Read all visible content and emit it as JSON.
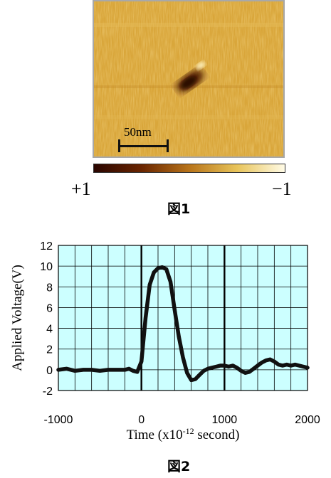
{
  "figure1": {
    "scalebar_label": "50nm",
    "colorbar": {
      "left_label": "+1",
      "right_label": "−1",
      "stops": [
        "#2a0500",
        "#6a2500",
        "#b8741a",
        "#e8c45a",
        "#fffbe6"
      ]
    },
    "caption": "図1",
    "image_palette": {
      "background": "#d9a63a",
      "dark_spot": "#4a1500",
      "bright_spot": "#fff3c0"
    }
  },
  "figure2": {
    "caption": "図2",
    "chart_data": {
      "type": "line",
      "xlabel": "Time (x10",
      "xlabel_sup": "-12",
      "xlabel_suffix": " second)",
      "ylabel": "Applied Voltage(V)",
      "xlim": [
        -1000,
        2000
      ],
      "ylim": [
        -2,
        12
      ],
      "x_ticks": [
        -1000,
        0,
        1000,
        2000
      ],
      "y_ticks": [
        -2,
        0,
        2,
        4,
        6,
        8,
        10,
        12
      ],
      "x_tick_labels": [
        "-1000",
        "0",
        "1000",
        "2000"
      ],
      "y_tick_labels": [
        "-2",
        "0",
        "2",
        "4",
        "6",
        "8",
        "10",
        "12"
      ],
      "grid": true,
      "plot_background": "#ccffff",
      "line_color": "#111111",
      "series": [
        {
          "x": [
            -1000,
            -900,
            -800,
            -700,
            -600,
            -500,
            -400,
            -300,
            -200,
            -150,
            -100,
            -50,
            0,
            50,
            100,
            150,
            200,
            250,
            300,
            350,
            400,
            450,
            500,
            550,
            600,
            650,
            700,
            750,
            800,
            850,
            900,
            950,
            1000,
            1050,
            1100,
            1150,
            1200,
            1250,
            1300,
            1350,
            1400,
            1450,
            1500,
            1550,
            1600,
            1650,
            1700,
            1750,
            1800,
            1850,
            1900,
            1950,
            2000
          ],
          "y": [
            0.0,
            0.1,
            -0.1,
            0.0,
            0.0,
            -0.1,
            0.0,
            0.0,
            0.0,
            0.1,
            -0.1,
            -0.2,
            0.8,
            5.0,
            8.2,
            9.4,
            9.8,
            9.9,
            9.7,
            8.5,
            5.8,
            3.2,
            1.2,
            -0.3,
            -1.0,
            -0.9,
            -0.5,
            -0.1,
            0.1,
            0.2,
            0.3,
            0.4,
            0.4,
            0.3,
            0.4,
            0.2,
            -0.1,
            -0.3,
            -0.2,
            0.1,
            0.4,
            0.7,
            0.9,
            1.0,
            0.8,
            0.5,
            0.4,
            0.5,
            0.4,
            0.5,
            0.4,
            0.3,
            0.2
          ]
        }
      ]
    }
  }
}
